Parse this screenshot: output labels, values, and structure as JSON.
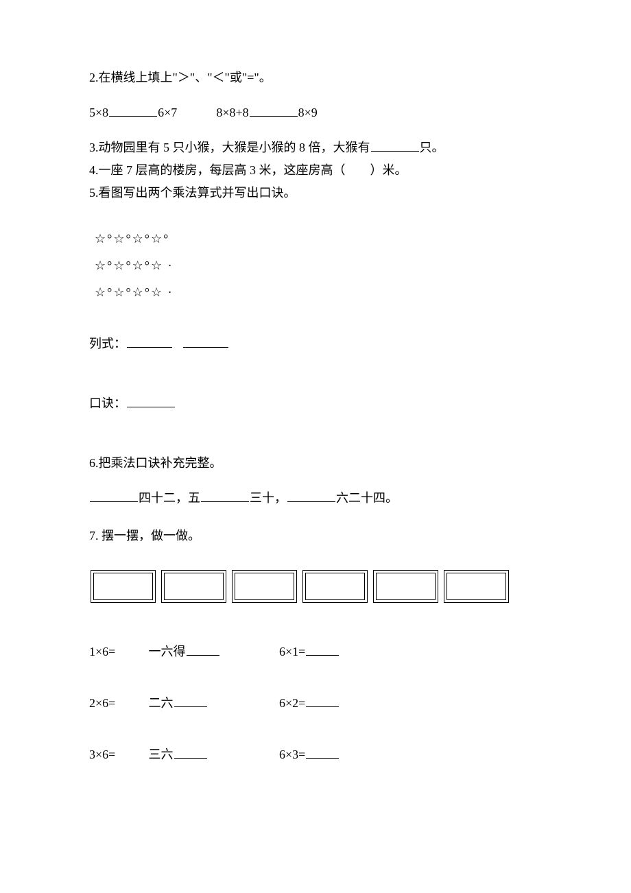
{
  "q2": {
    "title": "2.在横线上填上\"＞\"、\"＜\"或\"=\"。",
    "expr1_left": "5×8",
    "expr1_right": "6×7",
    "expr2_left": "8×8+8",
    "expr2_right": "8×9"
  },
  "q3": {
    "text_a": "3.动物园里有 5 只小猴，大猴是小猴的 8 倍，大猴有",
    "text_b": "只。"
  },
  "q4": {
    "text": "4.一座 7 层高的楼房，每层高 3 米，这座房高（　　）米。"
  },
  "q5": {
    "title": "5.看图写出两个乘法算式并写出口诀。",
    "star_row": "☆°☆°☆°☆°",
    "star_row_alt": "☆°☆°☆°☆ ·",
    "lieshi_label": "列式：",
    "koujue_label": "口诀："
  },
  "q6": {
    "title": "6.把乘法口诀补充完整。",
    "fill_a": "四十二，五",
    "fill_b": "三十，",
    "fill_c": "六二十四。"
  },
  "q7": {
    "title": "7. 摆一摆，做一做。",
    "rect_count": 6,
    "rows": [
      {
        "lhs": "1×6=",
        "mid": "一六得",
        "rhs": "6×1="
      },
      {
        "lhs": "2×6=",
        "mid": "二六",
        "rhs": "6×2="
      },
      {
        "lhs": "3×6=",
        "mid": "三六",
        "rhs": "6×3="
      }
    ]
  }
}
